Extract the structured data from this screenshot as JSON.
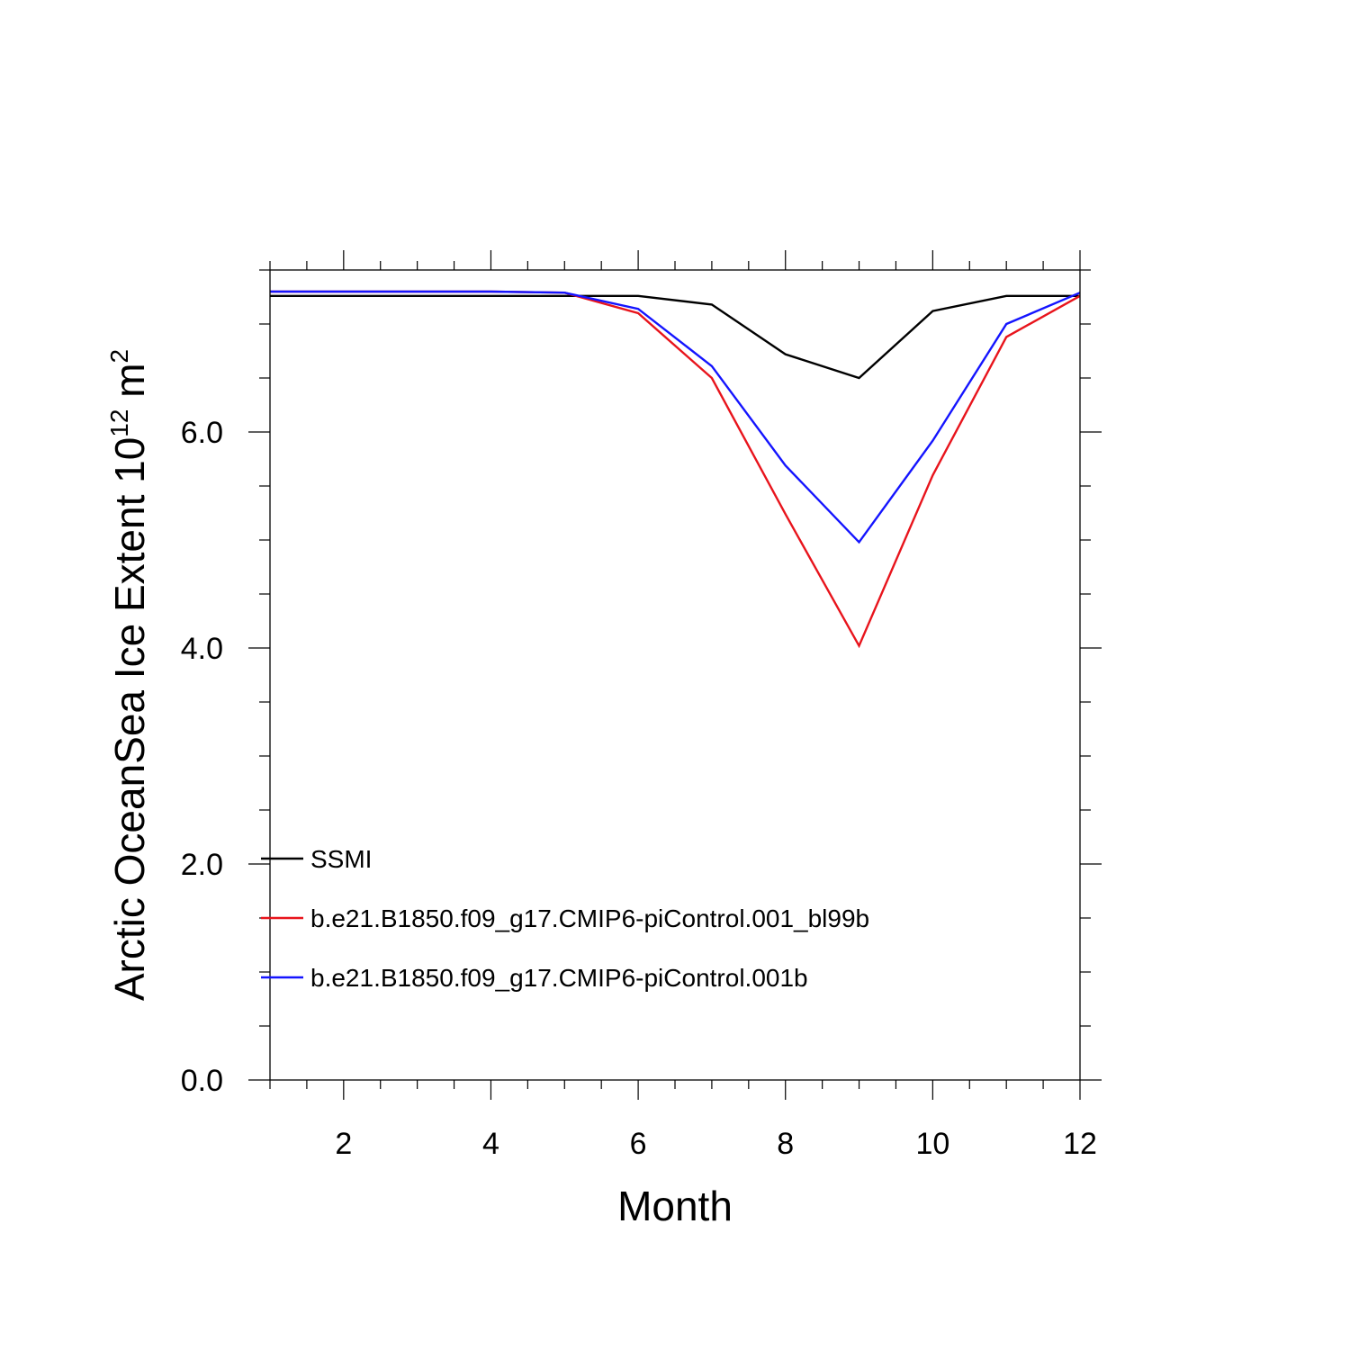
{
  "chart_data": {
    "type": "line",
    "title": "",
    "xlabel": "Month",
    "ylabel": "Arctic OceanSea Ice Extent 10",
    "ylabel_exponent": "12",
    "ylabel_unit": " m",
    "ylabel_unit_exponent": "2",
    "xlim": [
      1,
      12
    ],
    "ylim": [
      0,
      7.5
    ],
    "xticks": [
      2,
      4,
      6,
      8,
      10,
      12
    ],
    "xtick_labels": [
      "2",
      "4",
      "6",
      "8",
      "10",
      "12"
    ],
    "yticks": [
      0,
      2,
      4,
      6
    ],
    "ytick_labels": [
      "0.0",
      "2.0",
      "4.0",
      "6.0"
    ],
    "grid": false,
    "legend_position": "bottom-left",
    "x": [
      1,
      2,
      3,
      4,
      5,
      6,
      7,
      8,
      9,
      10,
      11,
      12
    ],
    "series": [
      {
        "name": "SSMI",
        "color": "#000000",
        "values": [
          7.26,
          7.26,
          7.26,
          7.26,
          7.26,
          7.26,
          7.18,
          6.72,
          6.5,
          7.12,
          7.26,
          7.26
        ]
      },
      {
        "name": "b.e21.B1850.f09_g17.CMIP6-piControl.001_bl99b",
        "color": "#e8141c",
        "values": [
          7.3,
          7.3,
          7.3,
          7.3,
          7.29,
          7.1,
          6.5,
          5.24,
          4.02,
          5.6,
          6.88,
          7.26
        ]
      },
      {
        "name": "b.e21.B1850.f09_g17.CMIP6-piControl.001b",
        "color": "#1414ff",
        "values": [
          7.3,
          7.3,
          7.3,
          7.3,
          7.29,
          7.14,
          6.61,
          5.69,
          4.98,
          5.92,
          7.0,
          7.29
        ]
      }
    ]
  }
}
